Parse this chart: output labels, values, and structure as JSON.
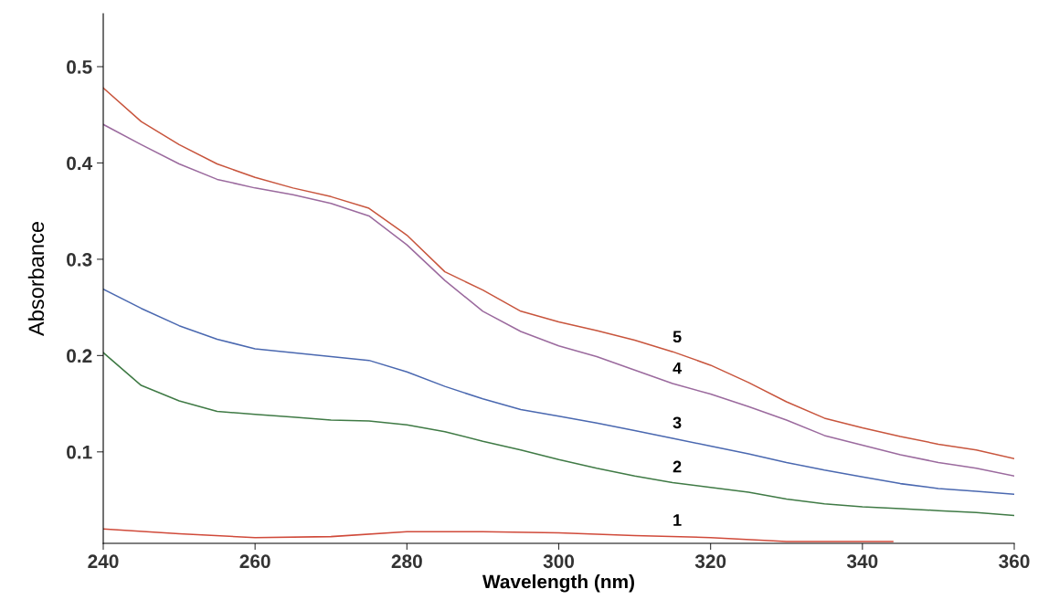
{
  "chart_data": {
    "type": "line",
    "xlabel": "Wavelength (nm)",
    "ylabel": "Absorbance",
    "xlim": [
      240,
      360
    ],
    "xticks": [
      240,
      260,
      280,
      300,
      320,
      340,
      360
    ],
    "ylim": [
      0.005,
      0.555
    ],
    "yticks": [
      0.1,
      0.2,
      0.3,
      0.4,
      0.5
    ],
    "grid": false,
    "legend": false,
    "line_style": "solid",
    "marker": "none",
    "series": [
      {
        "name": "1",
        "color": "#d04a3a",
        "x": [
          240,
          250,
          260,
          270,
          280,
          290,
          300,
          310,
          320,
          330,
          340,
          344
        ],
        "values": [
          0.02,
          0.015,
          0.011,
          0.012,
          0.017,
          0.017,
          0.016,
          0.013,
          0.011,
          0.007,
          0.007,
          0.007
        ]
      },
      {
        "name": "2",
        "color": "#3f7a45",
        "x": [
          240,
          245,
          250,
          255,
          260,
          265,
          270,
          275,
          280,
          285,
          290,
          295,
          300,
          305,
          310,
          315,
          320,
          325,
          330,
          335,
          340,
          345,
          350,
          355,
          360
        ],
        "values": [
          0.203,
          0.169,
          0.153,
          0.142,
          0.139,
          0.136,
          0.133,
          0.132,
          0.128,
          0.121,
          0.111,
          0.102,
          0.092,
          0.083,
          0.075,
          0.068,
          0.063,
          0.058,
          0.051,
          0.046,
          0.043,
          0.041,
          0.039,
          0.037,
          0.034
        ]
      },
      {
        "name": "3",
        "color": "#4a68b0",
        "x": [
          240,
          245,
          250,
          255,
          260,
          265,
          270,
          275,
          280,
          285,
          290,
          295,
          300,
          305,
          310,
          315,
          320,
          325,
          330,
          335,
          340,
          345,
          350,
          355,
          360
        ],
        "values": [
          0.269,
          0.249,
          0.231,
          0.217,
          0.207,
          0.203,
          0.199,
          0.195,
          0.183,
          0.168,
          0.155,
          0.144,
          0.137,
          0.13,
          0.122,
          0.114,
          0.106,
          0.098,
          0.089,
          0.081,
          0.074,
          0.067,
          0.062,
          0.059,
          0.056
        ]
      },
      {
        "name": "4",
        "color": "#9b6a9e",
        "x": [
          240,
          245,
          250,
          255,
          260,
          265,
          270,
          275,
          280,
          285,
          290,
          295,
          300,
          305,
          310,
          315,
          320,
          325,
          330,
          335,
          340,
          345,
          350,
          355,
          360
        ],
        "values": [
          0.44,
          0.419,
          0.399,
          0.383,
          0.374,
          0.367,
          0.358,
          0.345,
          0.315,
          0.278,
          0.246,
          0.225,
          0.21,
          0.199,
          0.185,
          0.171,
          0.16,
          0.147,
          0.133,
          0.117,
          0.107,
          0.097,
          0.089,
          0.083,
          0.075
        ]
      },
      {
        "name": "5",
        "color": "#c8553d",
        "x": [
          240,
          245,
          250,
          255,
          260,
          265,
          270,
          275,
          280,
          285,
          290,
          295,
          300,
          305,
          310,
          315,
          320,
          325,
          330,
          335,
          340,
          345,
          350,
          355,
          360
        ],
        "values": [
          0.478,
          0.443,
          0.419,
          0.399,
          0.385,
          0.374,
          0.365,
          0.353,
          0.325,
          0.287,
          0.268,
          0.246,
          0.235,
          0.226,
          0.216,
          0.204,
          0.19,
          0.172,
          0.152,
          0.135,
          0.125,
          0.116,
          0.108,
          0.102,
          0.093
        ]
      }
    ]
  }
}
